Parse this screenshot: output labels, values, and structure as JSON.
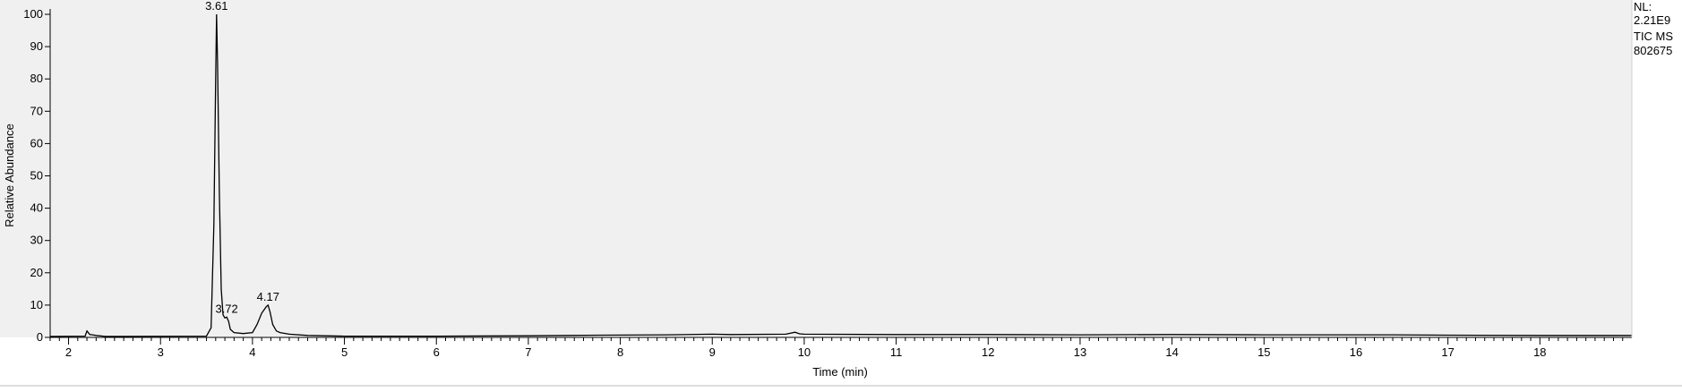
{
  "chart_data": {
    "type": "line",
    "xlabel": "Time (min)",
    "ylabel": "Relative Abundance",
    "xlim": [
      1.8,
      19.0
    ],
    "ylim": [
      0,
      100
    ],
    "x_ticks": [
      2,
      3,
      4,
      5,
      6,
      7,
      8,
      9,
      10,
      11,
      12,
      13,
      14,
      15,
      16,
      17,
      18
    ],
    "y_ticks": [
      0,
      10,
      20,
      30,
      40,
      50,
      60,
      70,
      80,
      90,
      100
    ],
    "grid": false,
    "series": [
      {
        "x": [
          1.8,
          2.18,
          2.2,
          2.23,
          2.26,
          2.3,
          2.4,
          3.5,
          3.55,
          3.58,
          3.6,
          3.61,
          3.62,
          3.64,
          3.66,
          3.68,
          3.7,
          3.72,
          3.74,
          3.76,
          3.8,
          3.9,
          4.0,
          4.05,
          4.1,
          4.15,
          4.17,
          4.19,
          4.22,
          4.26,
          4.3,
          4.4,
          4.6,
          5.0,
          6.0,
          7.0,
          7.8,
          8.5,
          9.0,
          9.2,
          9.8,
          9.9,
          9.95,
          10.0,
          11.0,
          12.0,
          13.0,
          14.0,
          15.0,
          16.0,
          16.4,
          17.0,
          18.0,
          19.0
        ],
        "y": [
          0.3,
          0.4,
          2.0,
          0.9,
          0.8,
          0.6,
          0.3,
          0.4,
          3.0,
          35.0,
          80.0,
          100.0,
          85.0,
          45.0,
          15.0,
          7.0,
          6.0,
          6.3,
          5.0,
          2.5,
          1.5,
          1.2,
          1.5,
          4.0,
          7.5,
          9.5,
          10.0,
          8.0,
          4.0,
          2.0,
          1.5,
          1.0,
          0.6,
          0.4,
          0.4,
          0.5,
          0.7,
          0.8,
          1.0,
          0.9,
          1.0,
          1.6,
          1.1,
          1.0,
          0.9,
          0.9,
          0.8,
          0.9,
          0.8,
          0.8,
          0.8,
          0.7,
          0.6,
          0.6
        ]
      }
    ],
    "annotations": [
      {
        "x": 3.61,
        "y": 100,
        "text": "3.61"
      },
      {
        "x": 3.72,
        "y": 6.3,
        "text": "3.72"
      },
      {
        "x": 4.17,
        "y": 10,
        "text": "4.17"
      }
    ],
    "info": [
      "NL:",
      "2.21E9",
      "TIC  MS",
      "802675"
    ]
  }
}
